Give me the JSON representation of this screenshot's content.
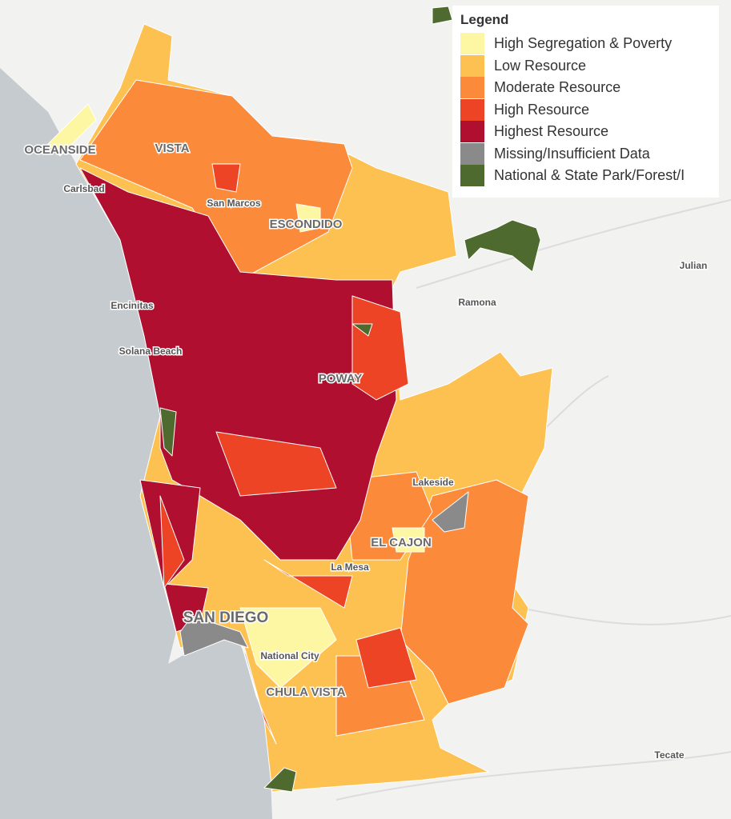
{
  "legend": {
    "title": "Legend",
    "items": [
      {
        "label": "High Segregation & Poverty",
        "color": "#fdf7a3"
      },
      {
        "label": "Low Resource",
        "color": "#fdc151"
      },
      {
        "label": "Moderate Resource",
        "color": "#fb8b3b"
      },
      {
        "label": "High Resource",
        "color": "#ee4426"
      },
      {
        "label": "Highest Resource",
        "color": "#b00f2f"
      },
      {
        "label": "Missing/Insufficient Data",
        "color": "#8a8a8a"
      },
      {
        "label": "National & State Park/Forest/I",
        "color": "#4e6a2e"
      }
    ]
  },
  "places": [
    "OCEANSIDE",
    "VISTA",
    "Carlsbad",
    "San Marcos",
    "ESCONDIDO",
    "Encinitas",
    "Solana Beach",
    "POWAY",
    "Ramona",
    "Julian",
    "Lakeside",
    "EL CAJON",
    "La Mesa",
    "SAN DIEGO",
    "National City",
    "CHULA VISTA",
    "Tecate"
  ]
}
